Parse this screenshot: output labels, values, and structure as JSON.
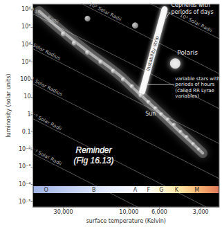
{
  "chart_data": {
    "type": "scatter",
    "x_label": "surface temperature (Kelvin)",
    "y_label": "luminosity (solar units)",
    "log": true,
    "grid": false,
    "xlim": [
      50000,
      2200
    ],
    "ylim": [
      5e-06,
      2000000
    ],
    "xticks": [
      {
        "value": 30000,
        "label": "30,000"
      },
      {
        "value": 10000,
        "label": "10,000"
      },
      {
        "value": 6000,
        "label": "6,000"
      },
      {
        "value": 3000,
        "label": "3,000"
      }
    ],
    "yticks": [
      {
        "value": 1000000,
        "label": "10⁶"
      },
      {
        "value": 100000,
        "label": "10⁵"
      },
      {
        "value": 10000,
        "label": "10⁴"
      },
      {
        "value": 1000,
        "label": "10³"
      },
      100,
      10,
      1,
      0.1,
      {
        "value": 0.01,
        "label": "10⁻²"
      },
      {
        "value": 0.001,
        "label": "10⁻³"
      },
      {
        "value": 0.0001,
        "label": "10⁻⁴"
      },
      {
        "value": 1e-05,
        "label": "10⁻⁵"
      }
    ],
    "series": [
      {
        "type": "line",
        "line_style": "glow",
        "color": "#f2f2f2",
        "values": [
          [
            45000,
            800000
          ],
          [
            30000,
            50000
          ],
          [
            20000,
            4000
          ],
          [
            12000,
            200
          ],
          [
            9000,
            25
          ],
          [
            7000,
            4
          ],
          [
            5800,
            1
          ],
          [
            4500,
            0.15
          ],
          [
            3600,
            0.03
          ],
          [
            2900,
            0.006
          ]
        ]
      },
      {
        "type": "line",
        "line_style": "strip",
        "color": "#ffffff",
        "values": [
          [
            8000,
            20
          ],
          [
            5500,
            1000000
          ]
        ]
      },
      {
        "type": "scatter",
        "marker": "sphere",
        "color": "#8a8a8a",
        "values": [
          [
            20000,
            300000
          ],
          [
            9000,
            120000
          ],
          [
            30000,
            40000
          ],
          [
            25000,
            12000
          ],
          [
            20000,
            3500
          ],
          [
            16000,
            1000
          ],
          [
            13000,
            300
          ],
          [
            11000,
            100
          ],
          [
            9500,
            40
          ],
          [
            8200,
            12
          ],
          [
            7200,
            5
          ],
          [
            6400,
            2.2
          ],
          [
            5800,
            1
          ],
          [
            5200,
            0.5
          ],
          [
            4700,
            0.25
          ],
          [
            4200,
            0.1
          ],
          [
            3800,
            0.05
          ],
          [
            3400,
            0.02
          ],
          [
            3100,
            0.01
          ]
        ]
      },
      {
        "type": "scatter",
        "marker": "blob",
        "color": "#ffffff",
        "values": [
          [
            4600,
            800
          ]
        ]
      }
    ],
    "radius_lines": [
      {
        "label": "10³ Solar Radii",
        "color": "#6e6e6e",
        "points": [
          [
            50000,
            5600000000
          ],
          [
            2200,
            21000
          ]
        ]
      },
      {
        "label": "10² Solar Radii",
        "color": "#6e6e6e",
        "points": [
          [
            50000,
            56000000
          ],
          [
            2200,
            210
          ]
        ]
      },
      {
        "label": "10 Solar Radii",
        "color": "#6e6e6e",
        "points": [
          [
            50000,
            560000
          ],
          [
            2200,
            2.1
          ]
        ]
      },
      {
        "label": "1 Solar Radius",
        "color": "#6e6e6e",
        "points": [
          [
            50000,
            5600
          ],
          [
            2200,
            0.021
          ]
        ]
      },
      {
        "label": "0.1 Solar Radius",
        "color": "#6e6e6e",
        "points": [
          [
            50000,
            56
          ],
          [
            2200,
            0.00021
          ]
        ]
      },
      {
        "label": "10⁻² Solar Radii",
        "color": "#6e6e6e",
        "points": [
          [
            50000,
            0.56
          ],
          [
            2200,
            2.1e-06
          ]
        ]
      },
      {
        "label": "10⁻³ Solar Radii",
        "color": "#6e6e6e",
        "points": [
          [
            50000,
            0.0056
          ],
          [
            2200,
            2.1e-08
          ]
        ]
      }
    ],
    "annotations": [
      {
        "text": [
          "Cepheids with",
          "periods of days"
        ],
        "at": [
          5600,
          300000
        ]
      },
      {
        "text": [
          "instability strip"
        ],
        "at": [
          6700,
          3000
        ]
      },
      {
        "text": [
          "Polaris"
        ],
        "at": [
          4600,
          800
        ]
      },
      {
        "text": [
          "variable stars with",
          "periods of hours",
          "(called RR Lyrae",
          "variables)"
        ],
        "at": [
          7750,
          50
        ]
      },
      {
        "text": [
          "Sun"
        ],
        "at": [
          5800,
          1
        ]
      }
    ],
    "spectral_classes": [
      {
        "label": "O",
        "temperature": 40000
      },
      {
        "label": "B",
        "temperature": 18000
      },
      {
        "label": "A",
        "temperature": 9000
      },
      {
        "label": "F",
        "temperature": 7200
      },
      {
        "label": "G",
        "temperature": 5800
      },
      {
        "label": "K",
        "temperature": 4500
      },
      {
        "label": "M",
        "temperature": 3200
      }
    ],
    "caption": [
      "Reminder",
      "(Fig 16.13)"
    ]
  }
}
